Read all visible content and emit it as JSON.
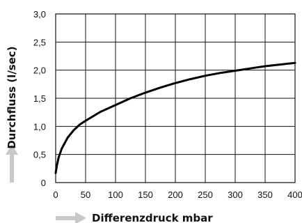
{
  "chart_data": {
    "type": "line",
    "xlabel": "Differenzdruck mbar",
    "ylabel": "Durchfluss (l/sec)",
    "xlim": [
      0,
      400
    ],
    "ylim": [
      0,
      3.0
    ],
    "x_ticks": [
      "0",
      "50",
      "100",
      "150",
      "200",
      "250",
      "300",
      "350",
      "400"
    ],
    "y_ticks": [
      "0",
      "0,5",
      "1,0",
      "1,5",
      "2,0",
      "2,5",
      "3,0"
    ],
    "grid": true,
    "series": [
      {
        "color": "#000000",
        "x": [
          0,
          2,
          5,
          10,
          20,
          30,
          40,
          50,
          75,
          100,
          125,
          150,
          175,
          200,
          225,
          250,
          275,
          300,
          325,
          350,
          375,
          400
        ],
        "y": [
          0.17,
          0.3,
          0.45,
          0.6,
          0.8,
          0.93,
          1.03,
          1.1,
          1.26,
          1.38,
          1.5,
          1.6,
          1.69,
          1.77,
          1.84,
          1.9,
          1.95,
          1.99,
          2.03,
          2.07,
          2.1,
          2.13
        ]
      }
    ]
  }
}
